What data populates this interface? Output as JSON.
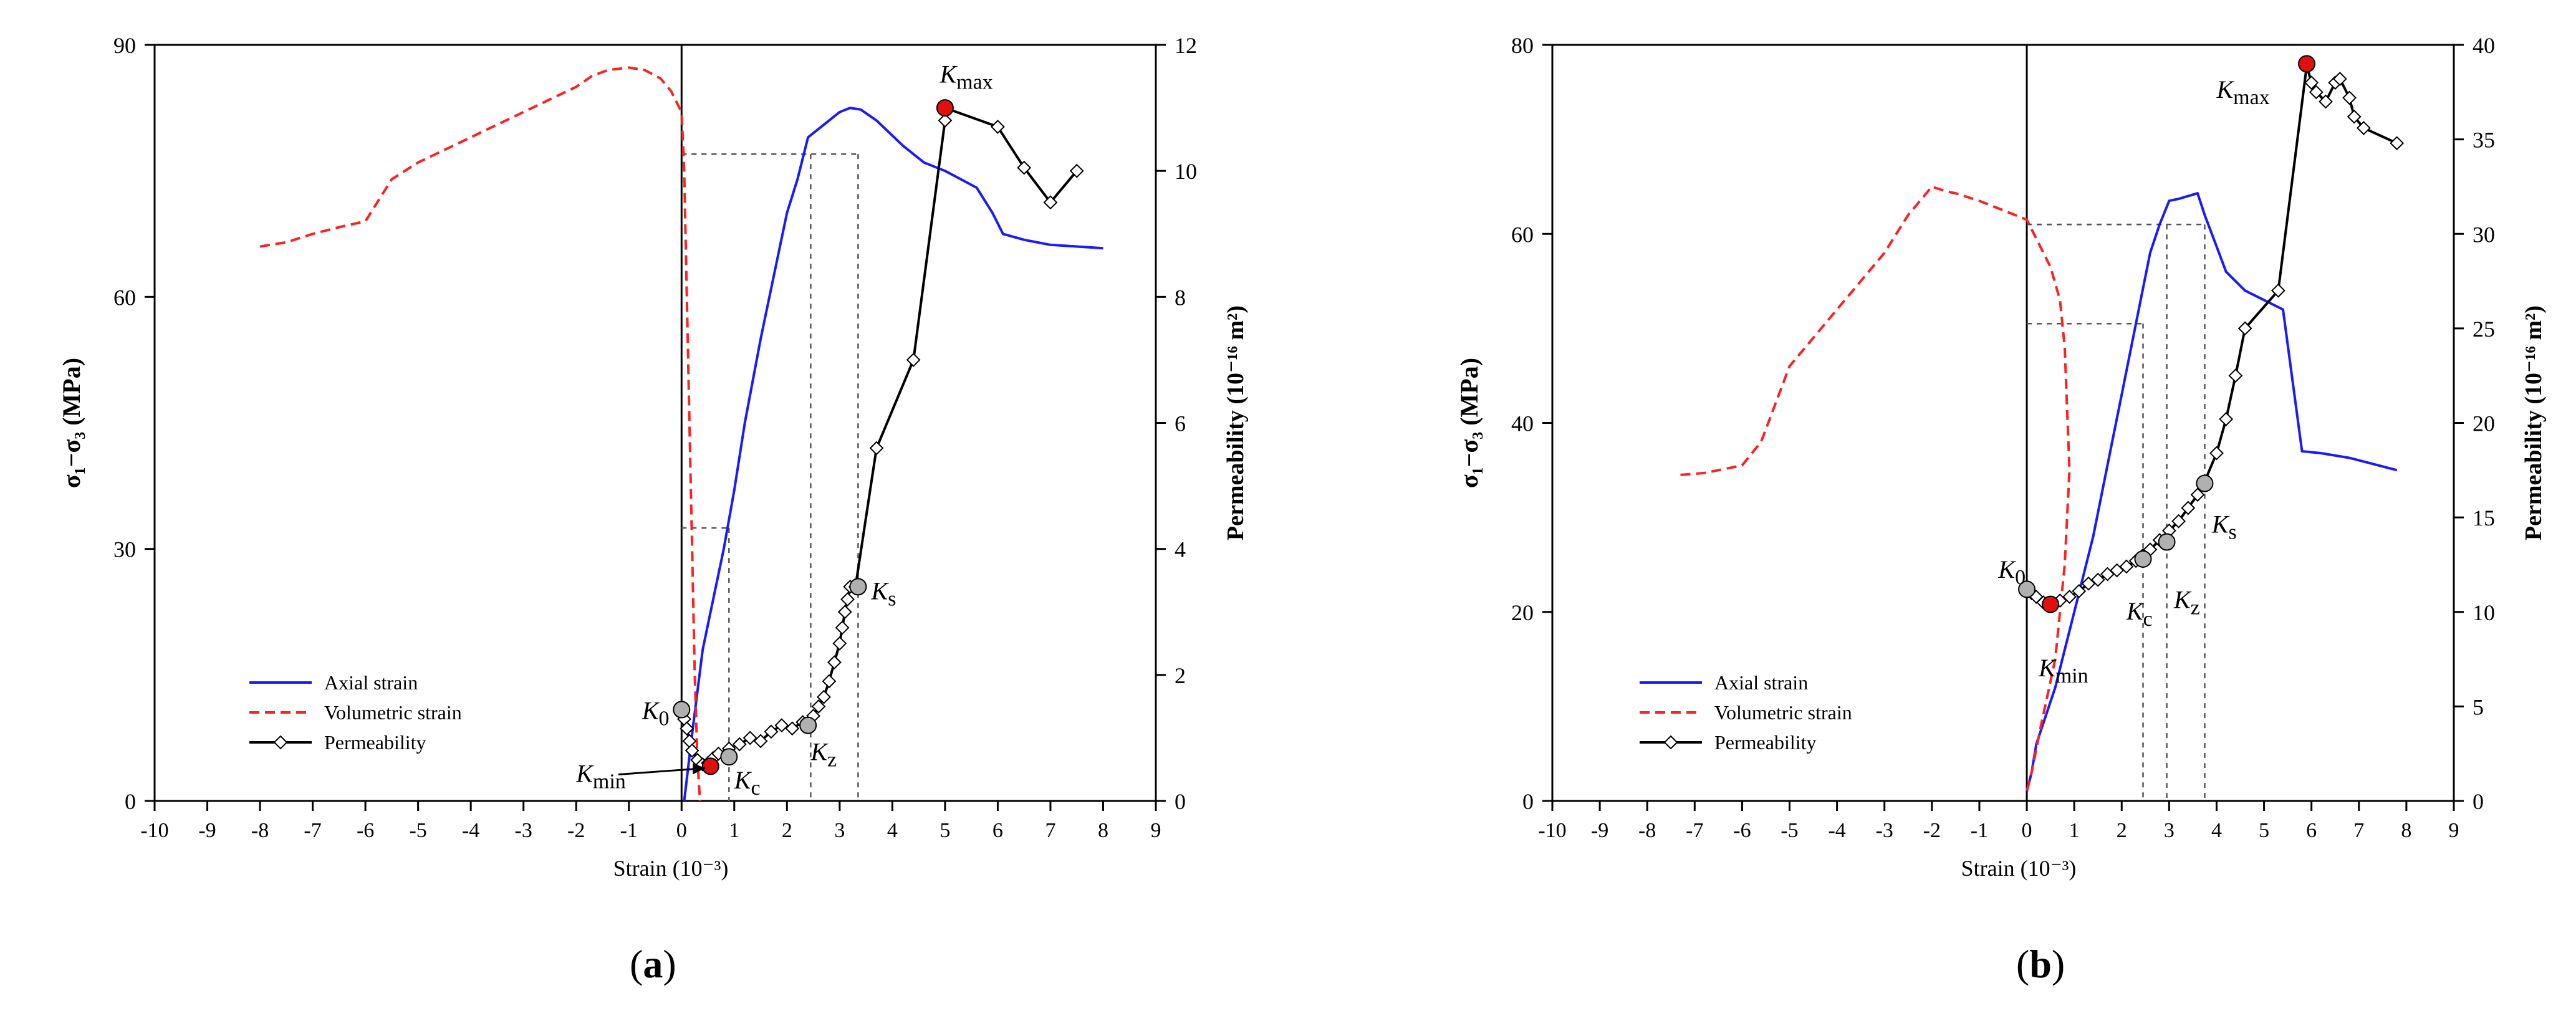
{
  "panels": [
    {
      "panel_label_open": "(",
      "panel_label_letter": "a",
      "panel_label_close": ")",
      "kmax_sub": "max",
      "kmin_sub": "min"
    },
    {
      "panel_label_open": "(",
      "panel_label_letter": "b",
      "panel_label_close": ")",
      "kmax_sub": "max",
      "kmin_sub": "min"
    }
  ],
  "colors": {
    "axial": "#1a1aff",
    "volumetric": "#ff2020",
    "permeability": "#000000",
    "highlight_point": "#e01010",
    "stage_point": "#b0b0b0"
  },
  "chart_data": [
    {
      "type": "line",
      "title": "",
      "xlabel": "Strain (10⁻³)",
      "ylabel": "σ₁−σ₃ (MPa)",
      "y2label": "Permeability (10⁻¹⁶ m²)",
      "xlim": [
        -10,
        9
      ],
      "ylim": [
        0,
        90
      ],
      "y2lim": [
        0,
        12
      ],
      "xticks": [
        "-10",
        "-9",
        "-8",
        "-7",
        "-6",
        "-5",
        "-4",
        "-3",
        "-2",
        "-1",
        "0",
        "1",
        "2",
        "3",
        "4",
        "5",
        "6",
        "7",
        "8",
        "9"
      ],
      "yticks": [
        "0",
        "30",
        "60",
        "90"
      ],
      "y2ticks": [
        "0",
        "2",
        "4",
        "6",
        "8",
        "10",
        "12"
      ],
      "legend_position": "lower-left",
      "series": [
        {
          "name": "Axial  strain",
          "axis": "left",
          "style": "solid",
          "color_key": "axial",
          "x": [
            0.05,
            0.2,
            0.4,
            0.6,
            0.8,
            1.0,
            1.2,
            1.5,
            1.8,
            2.0,
            2.2,
            2.4,
            2.6,
            2.8,
            3.0,
            3.2,
            3.4,
            3.7,
            4.2,
            4.6,
            5.0,
            5.3,
            5.6,
            5.8,
            5.9,
            6.1,
            6.5,
            7.0,
            7.5,
            8.0
          ],
          "y": [
            0,
            8,
            18,
            24,
            30,
            37,
            45,
            55,
            64,
            70,
            74,
            79,
            80,
            81,
            82,
            82.5,
            82.3,
            81,
            78,
            76,
            75,
            74,
            73,
            71,
            70,
            67.5,
            66.8,
            66.2,
            66,
            65.8
          ]
        },
        {
          "name": "Volumetric strain",
          "axis": "left",
          "style": "dashed",
          "color_key": "volumetric",
          "x": [
            -8.0,
            -7.5,
            -7.0,
            -6.5,
            -6.0,
            -5.8,
            -5.5,
            -5.0,
            -4.5,
            -4.0,
            -3.5,
            -3.0,
            -2.5,
            -2.0,
            -1.7,
            -1.4,
            -1.0,
            -0.7,
            -0.4,
            -0.2,
            0.0,
            0.05,
            0.1,
            0.15,
            0.2,
            0.25,
            0.3,
            0.35
          ],
          "y": [
            66,
            66.5,
            67.5,
            68.3,
            69,
            71,
            74,
            76,
            77.5,
            79,
            80.5,
            82,
            83.5,
            85,
            86.3,
            87,
            87.3,
            87,
            86,
            84.5,
            82,
            75,
            60,
            45,
            30,
            15,
            5,
            0
          ]
        },
        {
          "name": "Permeability",
          "axis": "right",
          "style": "solid",
          "color_key": "permeability",
          "marker": "diamond",
          "x": [
            0.0,
            0.05,
            0.1,
            0.15,
            0.2,
            0.3,
            0.4,
            0.5,
            0.6,
            0.7,
            0.9,
            1.1,
            1.3,
            1.5,
            1.7,
            1.9,
            2.1,
            2.3,
            2.5,
            2.6,
            2.7,
            2.8,
            2.9,
            3.0,
            3.05,
            3.1,
            3.15,
            3.2,
            3.3,
            3.7,
            4.4,
            5.0,
            5.0,
            6.0,
            6.5,
            7.0,
            7.5
          ],
          "y": [
            1.45,
            1.3,
            1.15,
            0.95,
            0.8,
            0.65,
            0.58,
            0.6,
            0.68,
            0.75,
            0.83,
            0.9,
            1.0,
            0.95,
            1.1,
            1.2,
            1.15,
            1.25,
            1.35,
            1.5,
            1.65,
            1.9,
            2.2,
            2.5,
            2.75,
            3.0,
            3.2,
            3.4,
            3.4,
            5.6,
            7.0,
            10.8,
            11.0,
            10.7,
            10.05,
            9.5,
            10.0
          ]
        }
      ],
      "markers": [
        {
          "label": "K",
          "sub": "0",
          "x": 0.0,
          "y2": 1.45,
          "kind": "stage"
        },
        {
          "label": "K",
          "sub": "min",
          "x": 0.55,
          "y2": 0.55,
          "kind": "highlight"
        },
        {
          "label": "K",
          "sub": "c",
          "x": 0.9,
          "y2": 0.7,
          "kind": "stage"
        },
        {
          "label": "K",
          "sub": "z",
          "x": 2.4,
          "y2": 1.2,
          "kind": "stage"
        },
        {
          "label": "K",
          "sub": "s",
          "x": 3.35,
          "y2": 3.4,
          "kind": "stage"
        },
        {
          "label": "K",
          "sub": "max",
          "x": 5.0,
          "y2": 11.0,
          "kind": "highlight"
        }
      ],
      "reference_lines": [
        {
          "x": 0.9,
          "y": 32.5
        },
        {
          "x": 2.45,
          "y": 77
        },
        {
          "x": 3.35,
          "y": 77
        }
      ]
    },
    {
      "type": "line",
      "title": "",
      "xlabel": "Strain (10⁻³)",
      "ylabel": "σ₁−σ₃ (MPa)",
      "y2label": "Permeability (10⁻¹⁶ m²)",
      "xlim": [
        -10,
        9
      ],
      "ylim": [
        0,
        80
      ],
      "y2lim": [
        0,
        40
      ],
      "xticks": [
        "-10",
        "-9",
        "-8",
        "-7",
        "-6",
        "-5",
        "-4",
        "-3",
        "-2",
        "-1",
        "0",
        "1",
        "2",
        "3",
        "4",
        "5",
        "6",
        "7",
        "8",
        "9"
      ],
      "yticks": [
        "0",
        "20",
        "40",
        "60",
        "80"
      ],
      "y2ticks": [
        "0",
        "5",
        "10",
        "15",
        "20",
        "25",
        "30",
        "35",
        "40"
      ],
      "legend_position": "lower-left",
      "series": [
        {
          "name": "Axial  strain",
          "axis": "left",
          "style": "solid",
          "color_key": "axial",
          "x": [
            0.0,
            0.1,
            0.2,
            0.4,
            0.6,
            0.8,
            1.0,
            1.2,
            1.4,
            1.6,
            1.8,
            2.0,
            2.2,
            2.4,
            2.6,
            2.8,
            3.0,
            3.2,
            3.4,
            3.6,
            3.75,
            3.9,
            4.2,
            4.6,
            5.0,
            5.4,
            5.8,
            6.2,
            6.8,
            7.8
          ],
          "y": [
            1,
            3,
            6,
            9,
            12,
            16,
            20,
            24,
            28,
            33,
            38,
            43,
            48,
            53,
            58,
            61,
            63.5,
            63.7,
            64,
            64.3,
            62,
            60,
            56,
            54,
            53,
            52,
            37,
            36.8,
            36.3,
            35
          ]
        },
        {
          "name": "Volumetric strain",
          "axis": "left",
          "style": "dashed",
          "color_key": "volumetric",
          "x": [
            -7.3,
            -6.8,
            -6.0,
            -5.6,
            -5.0,
            -4.5,
            -4.0,
            -3.5,
            -3.0,
            -2.5,
            -2.0,
            -1.7,
            -1.5,
            -1.0,
            -0.5,
            0.0,
            0.1,
            0.3,
            0.5,
            0.7,
            0.8,
            0.9,
            0.8,
            0.6,
            0.3,
            0.1,
            0.0
          ],
          "y": [
            34.5,
            34.7,
            35.5,
            38,
            46,
            49,
            52,
            55,
            58,
            62,
            65,
            64.5,
            64.3,
            63.5,
            62.5,
            61.5,
            60.5,
            58.5,
            56.5,
            53,
            48,
            35,
            25,
            15,
            8,
            3,
            1
          ]
        },
        {
          "name": "Permeability",
          "axis": "right",
          "style": "solid",
          "color_key": "permeability",
          "marker": "diamond",
          "x": [
            0.0,
            0.1,
            0.2,
            0.35,
            0.5,
            0.7,
            0.9,
            1.1,
            1.3,
            1.5,
            1.7,
            1.9,
            2.1,
            2.3,
            2.45,
            2.6,
            2.8,
            3.0,
            3.2,
            3.4,
            3.6,
            3.75,
            4.0,
            4.2,
            4.4,
            4.6,
            5.3,
            5.9,
            6.0,
            6.1,
            6.3,
            6.5,
            6.6,
            6.8,
            6.9,
            7.1,
            7.8
          ],
          "y": [
            11.3,
            11.0,
            10.8,
            10.5,
            10.4,
            10.6,
            10.8,
            11.1,
            11.5,
            11.7,
            12.0,
            12.2,
            12.4,
            12.7,
            13.0,
            13.3,
            13.8,
            14.3,
            14.8,
            15.5,
            16.2,
            16.9,
            18.4,
            20.2,
            22.5,
            25.0,
            27.0,
            38.9,
            38.0,
            37.5,
            37.0,
            38.0,
            38.2,
            37.2,
            36.2,
            35.6,
            34.8
          ]
        }
      ],
      "markers": [
        {
          "label": "K",
          "sub": "0",
          "x": 0.0,
          "y2": 11.2,
          "kind": "stage"
        },
        {
          "label": "K",
          "sub": "min",
          "x": 0.5,
          "y2": 10.4,
          "kind": "highlight"
        },
        {
          "label": "K",
          "sub": "c",
          "x": 2.45,
          "y2": 12.8,
          "kind": "stage"
        },
        {
          "label": "K",
          "sub": "z",
          "x": 2.95,
          "y2": 13.7,
          "kind": "stage"
        },
        {
          "label": "K",
          "sub": "s",
          "x": 3.75,
          "y2": 16.8,
          "kind": "stage"
        },
        {
          "label": "K",
          "sub": "max",
          "x": 5.9,
          "y2": 39.0,
          "kind": "highlight"
        }
      ],
      "reference_lines": [
        {
          "x": 2.45,
          "y": 50.5
        },
        {
          "x": 2.95,
          "y": 61.0
        },
        {
          "x": 3.75,
          "y": 61.0
        }
      ]
    }
  ]
}
